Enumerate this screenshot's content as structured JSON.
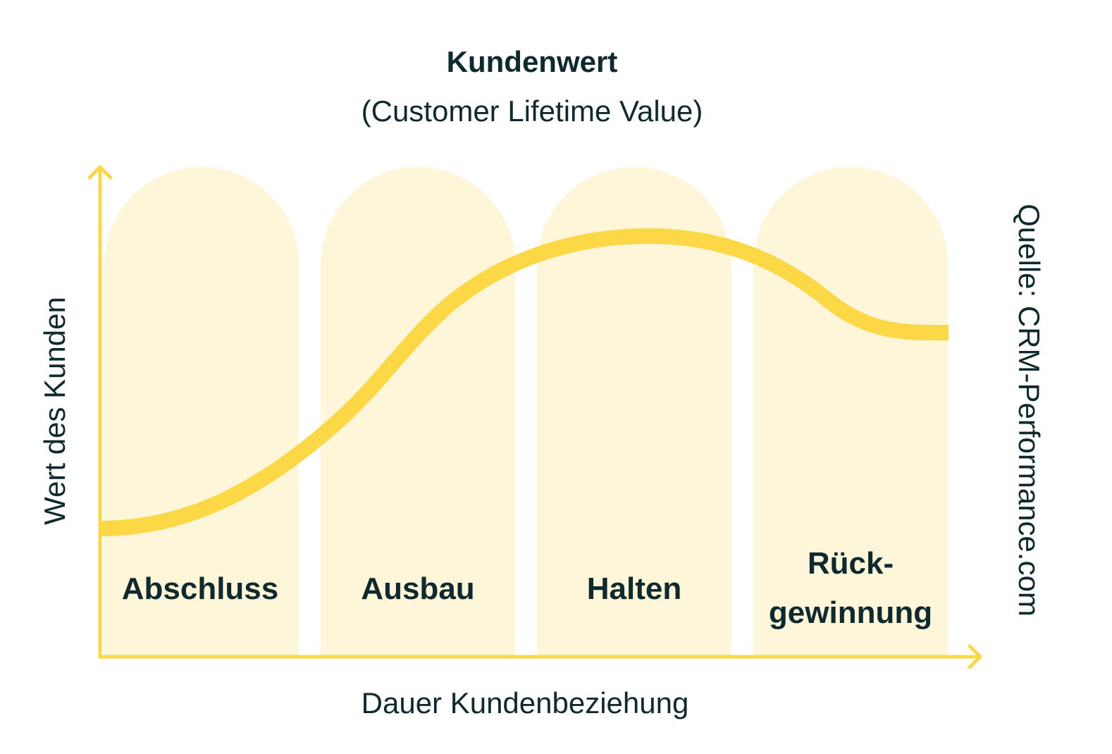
{
  "title": "Kundenwert",
  "subtitle": "(Customer Lifetime Value)",
  "y_axis_label": "Wert des Kunden",
  "x_axis_label": "Dauer Kundenbeziehung",
  "source": "Quelle: CRM-Performance.com",
  "phases": [
    {
      "label_line1": "Abschluss",
      "label_line2": ""
    },
    {
      "label_line1": "Ausbau",
      "label_line2": ""
    },
    {
      "label_line1": "Halten",
      "label_line2": ""
    },
    {
      "label_line1": "Rück-",
      "label_line2": "gewinnung"
    }
  ],
  "colors": {
    "axis": "#fcd846",
    "curve": "#fcd846",
    "phase_fill": "#fdf6d8",
    "text": "#0f2a2e"
  }
}
